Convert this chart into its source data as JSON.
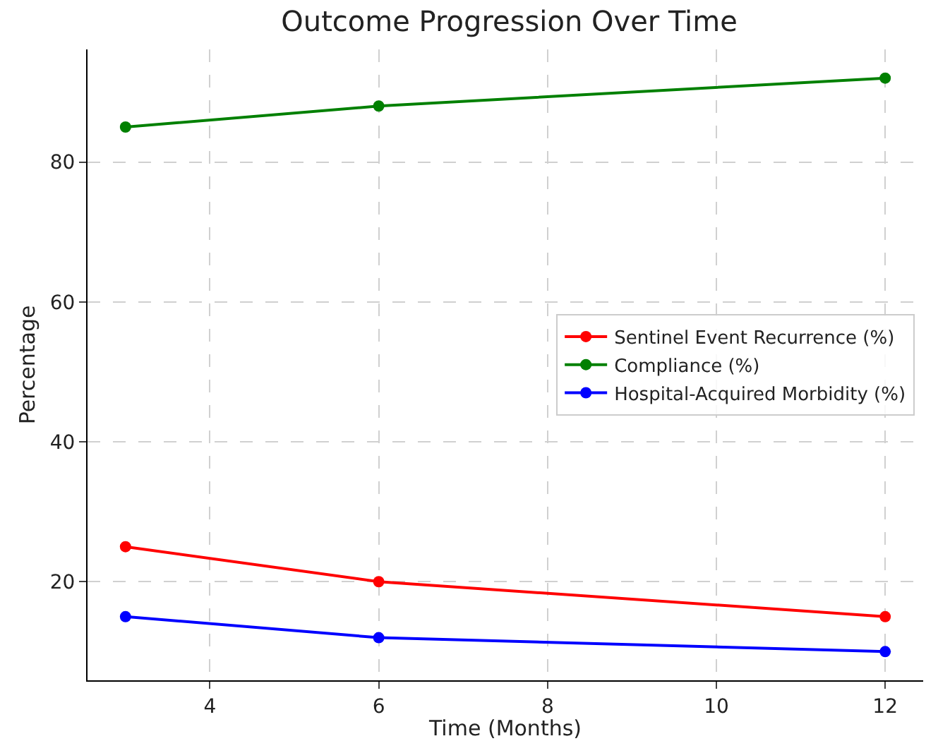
{
  "chart_data": {
    "type": "line",
    "title": "Outcome Progression Over Time",
    "xlabel": "Time (Months)",
    "ylabel": "Percentage",
    "x": [
      3,
      6,
      12
    ],
    "series": [
      {
        "name": "Sentinel Event Recurrence (%)",
        "color": "#ff0000",
        "values": [
          25,
          20,
          15
        ]
      },
      {
        "name": "Compliance (%)",
        "color": "#008000",
        "values": [
          85,
          88,
          92
        ]
      },
      {
        "name": "Hospital-Acquired Morbidity (%)",
        "color": "#0000ff",
        "values": [
          15,
          12,
          10
        ]
      }
    ],
    "xlim": [
      2.55,
      12.45
    ],
    "xticks": [
      4,
      6,
      8,
      10,
      12
    ],
    "ylim": [
      5.9,
      96.1
    ],
    "yticks": [
      20,
      40,
      60,
      80
    ],
    "grid": true,
    "legend": "right",
    "marker": "circle",
    "line_style": "solid"
  }
}
